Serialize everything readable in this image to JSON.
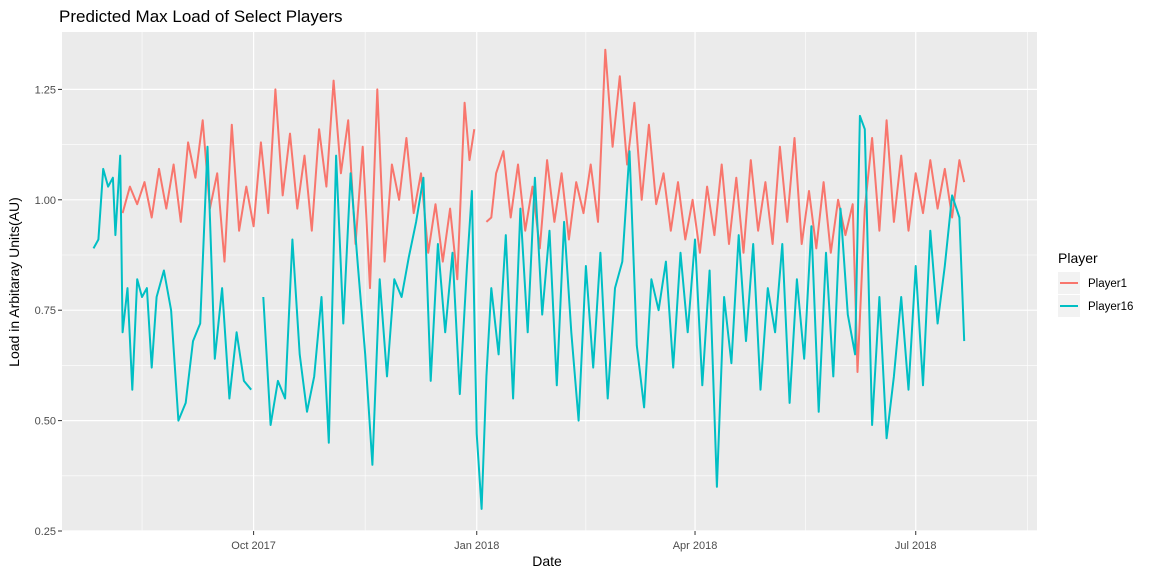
{
  "chart_data": {
    "type": "line",
    "title": "Predicted Max Load of Select Players",
    "xlabel": "Date",
    "ylabel": "Load in Arbitaray Units(AU)",
    "x_ticks": [
      "2017-10-01",
      "2018-01-01",
      "2018-04-01",
      "2018-07-01"
    ],
    "x_tick_labels": [
      "Oct 2017",
      "Jan 2018",
      "Apr 2018",
      "Jul 2018"
    ],
    "xlim": [
      "2017-07-14",
      "2018-08-20"
    ],
    "y_ticks": [
      0.25,
      0.5,
      0.75,
      1.0,
      1.25
    ],
    "y_tick_labels": [
      "0.25",
      "0.50",
      "0.75",
      "1.00",
      "1.25"
    ],
    "ylim": [
      0.25,
      1.38
    ],
    "grid": true,
    "background": "#ebebeb",
    "legend": {
      "title": "Player",
      "position": "right",
      "entries": [
        "Player1",
        "Player16"
      ]
    },
    "series": [
      {
        "name": "Player1",
        "color": "#F8766D",
        "points": [
          [
            "2017-08-08",
            0.97
          ],
          [
            "2017-08-11",
            1.03
          ],
          [
            "2017-08-14",
            0.99
          ],
          [
            "2017-08-17",
            1.04
          ],
          [
            "2017-08-20",
            0.96
          ],
          [
            "2017-08-23",
            1.07
          ],
          [
            "2017-08-26",
            0.98
          ],
          [
            "2017-08-29",
            1.08
          ],
          [
            "2017-09-01",
            0.95
          ],
          [
            "2017-09-04",
            1.13
          ],
          [
            "2017-09-07",
            1.05
          ],
          [
            "2017-09-10",
            1.18
          ],
          [
            "2017-09-13",
            0.98
          ],
          [
            "2017-09-16",
            1.06
          ],
          [
            "2017-09-19",
            0.86
          ],
          [
            "2017-09-22",
            1.17
          ],
          [
            "2017-09-25",
            0.93
          ],
          [
            "2017-09-28",
            1.03
          ],
          [
            "2017-10-01",
            0.94
          ],
          [
            "2017-10-04",
            1.13
          ],
          [
            "2017-10-07",
            0.97
          ],
          [
            "2017-10-10",
            1.25
          ],
          [
            "2017-10-13",
            1.01
          ],
          [
            "2017-10-16",
            1.15
          ],
          [
            "2017-10-19",
            0.98
          ],
          [
            "2017-10-22",
            1.1
          ],
          [
            "2017-10-25",
            0.93
          ],
          [
            "2017-10-28",
            1.16
          ],
          [
            "2017-10-31",
            1.03
          ],
          [
            "2017-11-03",
            1.27
          ],
          [
            "2017-11-06",
            1.06
          ],
          [
            "2017-11-09",
            1.18
          ],
          [
            "2017-11-12",
            0.9
          ],
          [
            "2017-11-15",
            1.12
          ],
          [
            "2017-11-18",
            0.8
          ],
          [
            "2017-11-21",
            1.25
          ],
          [
            "2017-11-24",
            0.86
          ],
          [
            "2017-11-27",
            1.08
          ],
          [
            "2017-11-30",
            1.0
          ],
          [
            "2017-12-03",
            1.14
          ],
          [
            "2017-12-06",
            0.97
          ],
          [
            "2017-12-09",
            1.06
          ],
          [
            "2017-12-12",
            0.88
          ],
          [
            "2017-12-15",
            0.99
          ],
          [
            "2017-12-18",
            0.86
          ],
          [
            "2017-12-21",
            0.98
          ],
          [
            "2017-12-24",
            0.82
          ],
          [
            "2017-12-27",
            1.22
          ],
          [
            "2017-12-29",
            1.09
          ],
          [
            "2017-12-31",
            1.16
          ],
          [
            "2018-01-05",
            0.95
          ],
          [
            "2018-01-07",
            0.96
          ],
          [
            "2018-01-09",
            1.06
          ],
          [
            "2018-01-12",
            1.11
          ],
          [
            "2018-01-15",
            0.96
          ],
          [
            "2018-01-18",
            1.08
          ],
          [
            "2018-01-21",
            0.93
          ],
          [
            "2018-01-24",
            1.03
          ],
          [
            "2018-01-27",
            0.89
          ],
          [
            "2018-01-30",
            1.09
          ],
          [
            "2018-02-02",
            0.95
          ],
          [
            "2018-02-05",
            1.06
          ],
          [
            "2018-02-08",
            0.91
          ],
          [
            "2018-02-11",
            1.04
          ],
          [
            "2018-02-14",
            0.97
          ],
          [
            "2018-02-17",
            1.08
          ],
          [
            "2018-02-20",
            0.95
          ],
          [
            "2018-02-23",
            1.34
          ],
          [
            "2018-02-26",
            1.12
          ],
          [
            "2018-03-01",
            1.28
          ],
          [
            "2018-03-04",
            1.08
          ],
          [
            "2018-03-07",
            1.22
          ],
          [
            "2018-03-10",
            1.0
          ],
          [
            "2018-03-13",
            1.17
          ],
          [
            "2018-03-16",
            0.99
          ],
          [
            "2018-03-19",
            1.06
          ],
          [
            "2018-03-22",
            0.93
          ],
          [
            "2018-03-25",
            1.04
          ],
          [
            "2018-03-28",
            0.91
          ],
          [
            "2018-03-31",
            1.0
          ],
          [
            "2018-04-03",
            0.88
          ],
          [
            "2018-04-06",
            1.03
          ],
          [
            "2018-04-09",
            0.92
          ],
          [
            "2018-04-12",
            1.08
          ],
          [
            "2018-04-15",
            0.9
          ],
          [
            "2018-04-18",
            1.05
          ],
          [
            "2018-04-21",
            0.88
          ],
          [
            "2018-04-24",
            1.09
          ],
          [
            "2018-04-27",
            0.93
          ],
          [
            "2018-04-30",
            1.04
          ],
          [
            "2018-05-03",
            0.9
          ],
          [
            "2018-05-06",
            1.12
          ],
          [
            "2018-05-09",
            0.95
          ],
          [
            "2018-05-12",
            1.14
          ],
          [
            "2018-05-15",
            0.9
          ],
          [
            "2018-05-18",
            1.02
          ],
          [
            "2018-05-21",
            0.89
          ],
          [
            "2018-05-24",
            1.04
          ],
          [
            "2018-05-27",
            0.88
          ],
          [
            "2018-05-30",
            1.0
          ],
          [
            "2018-06-02",
            0.92
          ],
          [
            "2018-06-05",
            0.99
          ],
          [
            "2018-06-07",
            0.61
          ],
          [
            "2018-06-10",
            0.98
          ],
          [
            "2018-06-13",
            1.14
          ],
          [
            "2018-06-16",
            0.93
          ],
          [
            "2018-06-19",
            1.18
          ],
          [
            "2018-06-22",
            0.95
          ],
          [
            "2018-06-25",
            1.1
          ],
          [
            "2018-06-28",
            0.93
          ],
          [
            "2018-07-01",
            1.06
          ],
          [
            "2018-07-04",
            0.97
          ],
          [
            "2018-07-07",
            1.09
          ],
          [
            "2018-07-10",
            0.98
          ],
          [
            "2018-07-13",
            1.07
          ],
          [
            "2018-07-16",
            0.96
          ],
          [
            "2018-07-19",
            1.09
          ],
          [
            "2018-07-21",
            1.04
          ]
        ]
      },
      {
        "name": "Player16",
        "color": "#00BFC4",
        "points": [
          [
            "2017-07-27",
            0.89
          ],
          [
            "2017-07-29",
            0.91
          ],
          [
            "2017-07-31",
            1.07
          ],
          [
            "2017-08-02",
            1.03
          ],
          [
            "2017-08-04",
            1.05
          ],
          [
            "2017-08-05",
            0.92
          ],
          [
            "2017-08-07",
            1.1
          ],
          [
            "2017-08-08",
            0.7
          ],
          [
            "2017-08-10",
            0.8
          ],
          [
            "2017-08-12",
            0.57
          ],
          [
            "2017-08-14",
            0.82
          ],
          [
            "2017-08-16",
            0.78
          ],
          [
            "2017-08-18",
            0.8
          ],
          [
            "2017-08-20",
            0.62
          ],
          [
            "2017-08-22",
            0.78
          ],
          [
            "2017-08-25",
            0.84
          ],
          [
            "2017-08-28",
            0.75
          ],
          [
            "2017-08-31",
            0.5
          ],
          [
            "2017-09-03",
            0.54
          ],
          [
            "2017-09-06",
            0.68
          ],
          [
            "2017-09-09",
            0.72
          ],
          [
            "2017-09-12",
            1.12
          ],
          [
            "2017-09-15",
            0.64
          ],
          [
            "2017-09-18",
            0.8
          ],
          [
            "2017-09-21",
            0.55
          ],
          [
            "2017-09-24",
            0.7
          ],
          [
            "2017-09-27",
            0.59
          ],
          [
            "2017-09-30",
            0.57
          ],
          [
            "2017-10-05",
            0.78
          ],
          [
            "2017-10-08",
            0.49
          ],
          [
            "2017-10-11",
            0.59
          ],
          [
            "2017-10-14",
            0.55
          ],
          [
            "2017-10-17",
            0.91
          ],
          [
            "2017-10-20",
            0.65
          ],
          [
            "2017-10-23",
            0.52
          ],
          [
            "2017-10-26",
            0.6
          ],
          [
            "2017-10-29",
            0.78
          ],
          [
            "2017-11-01",
            0.45
          ],
          [
            "2017-11-04",
            1.1
          ],
          [
            "2017-11-07",
            0.72
          ],
          [
            "2017-11-10",
            1.06
          ],
          [
            "2017-11-13",
            0.85
          ],
          [
            "2017-11-16",
            0.65
          ],
          [
            "2017-11-19",
            0.4
          ],
          [
            "2017-11-22",
            0.82
          ],
          [
            "2017-11-25",
            0.6
          ],
          [
            "2017-11-28",
            0.82
          ],
          [
            "2017-12-01",
            0.78
          ],
          [
            "2017-12-04",
            0.87
          ],
          [
            "2017-12-07",
            0.95
          ],
          [
            "2017-12-10",
            1.05
          ],
          [
            "2017-12-13",
            0.59
          ],
          [
            "2017-12-16",
            0.9
          ],
          [
            "2017-12-19",
            0.7
          ],
          [
            "2017-12-22",
            0.88
          ],
          [
            "2017-12-25",
            0.56
          ],
          [
            "2017-12-28",
            0.85
          ],
          [
            "2017-12-30",
            1.02
          ],
          [
            "2018-01-01",
            0.47
          ],
          [
            "2018-01-03",
            0.3
          ],
          [
            "2018-01-05",
            0.6
          ],
          [
            "2018-01-07",
            0.8
          ],
          [
            "2018-01-10",
            0.65
          ],
          [
            "2018-01-13",
            0.92
          ],
          [
            "2018-01-16",
            0.55
          ],
          [
            "2018-01-19",
            0.98
          ],
          [
            "2018-01-22",
            0.7
          ],
          [
            "2018-01-25",
            1.05
          ],
          [
            "2018-01-28",
            0.74
          ],
          [
            "2018-01-31",
            0.93
          ],
          [
            "2018-02-03",
            0.58
          ],
          [
            "2018-02-06",
            0.95
          ],
          [
            "2018-02-09",
            0.7
          ],
          [
            "2018-02-12",
            0.5
          ],
          [
            "2018-02-15",
            0.85
          ],
          [
            "2018-02-18",
            0.62
          ],
          [
            "2018-02-21",
            0.88
          ],
          [
            "2018-02-24",
            0.55
          ],
          [
            "2018-02-27",
            0.8
          ],
          [
            "2018-03-02",
            0.86
          ],
          [
            "2018-03-05",
            1.11
          ],
          [
            "2018-03-08",
            0.67
          ],
          [
            "2018-03-11",
            0.53
          ],
          [
            "2018-03-14",
            0.82
          ],
          [
            "2018-03-17",
            0.75
          ],
          [
            "2018-03-20",
            0.86
          ],
          [
            "2018-03-23",
            0.62
          ],
          [
            "2018-03-26",
            0.88
          ],
          [
            "2018-03-29",
            0.7
          ],
          [
            "2018-04-01",
            0.91
          ],
          [
            "2018-04-04",
            0.58
          ],
          [
            "2018-04-07",
            0.84
          ],
          [
            "2018-04-10",
            0.35
          ],
          [
            "2018-04-13",
            0.78
          ],
          [
            "2018-04-16",
            0.63
          ],
          [
            "2018-04-19",
            0.92
          ],
          [
            "2018-04-22",
            0.68
          ],
          [
            "2018-04-25",
            0.9
          ],
          [
            "2018-04-28",
            0.57
          ],
          [
            "2018-05-01",
            0.8
          ],
          [
            "2018-05-04",
            0.7
          ],
          [
            "2018-05-07",
            0.9
          ],
          [
            "2018-05-10",
            0.54
          ],
          [
            "2018-05-13",
            0.82
          ],
          [
            "2018-05-16",
            0.64
          ],
          [
            "2018-05-19",
            0.94
          ],
          [
            "2018-05-22",
            0.52
          ],
          [
            "2018-05-25",
            0.88
          ],
          [
            "2018-05-28",
            0.6
          ],
          [
            "2018-05-31",
            0.98
          ],
          [
            "2018-06-03",
            0.74
          ],
          [
            "2018-06-06",
            0.65
          ],
          [
            "2018-06-08",
            1.19
          ],
          [
            "2018-06-10",
            1.16
          ],
          [
            "2018-06-13",
            0.49
          ],
          [
            "2018-06-16",
            0.78
          ],
          [
            "2018-06-19",
            0.46
          ],
          [
            "2018-06-22",
            0.6
          ],
          [
            "2018-06-25",
            0.78
          ],
          [
            "2018-06-28",
            0.57
          ],
          [
            "2018-07-01",
            0.85
          ],
          [
            "2018-07-04",
            0.58
          ],
          [
            "2018-07-07",
            0.93
          ],
          [
            "2018-07-10",
            0.72
          ],
          [
            "2018-07-13",
            0.85
          ],
          [
            "2018-07-16",
            1.01
          ],
          [
            "2018-07-19",
            0.96
          ],
          [
            "2018-07-21",
            0.68
          ]
        ]
      }
    ]
  }
}
